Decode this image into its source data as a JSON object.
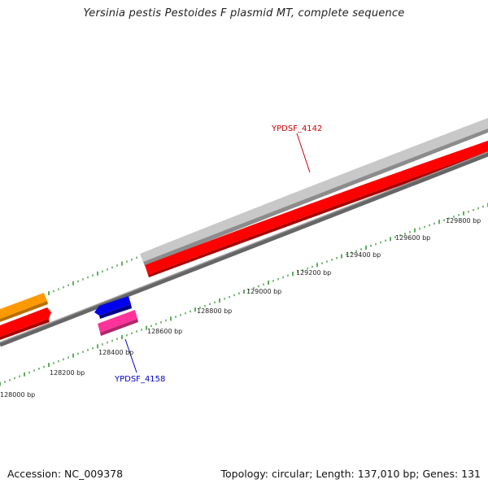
{
  "title": "Yersinia pestis Pestoides F plasmid MT, complete sequence",
  "footer": {
    "accession": "Accession: NC_009378",
    "stats": "Topology: circular; Length: 137,010 bp; Genes: 131"
  },
  "colors": {
    "forward_cds_grey": "#c8c8c8",
    "cds_red": "#ff0000",
    "cds_orange": "#ff9900",
    "cds_blue": "#0000ee",
    "cds_pink": "#ff3399",
    "backbone": "#777777",
    "tick": "#339933",
    "label_red": "#cc0000",
    "label_blue": "#0000cc"
  },
  "scale": {
    "ticks_bp": [
      128000,
      128200,
      128400,
      128600,
      128800,
      129000,
      129200,
      129400,
      129600,
      129800
    ],
    "unit": "bp"
  },
  "labels": {
    "top_gene": "YPDSF_4142",
    "bottom_gene": "YPDSF_4158"
  },
  "tick_labels": [
    "128000 bp",
    "128200 bp",
    "128400 bp",
    "128600 bp",
    "128800 bp",
    "129000 bp",
    "129200 bp",
    "129400 bp",
    "129600 bp",
    "129800 bp"
  ]
}
